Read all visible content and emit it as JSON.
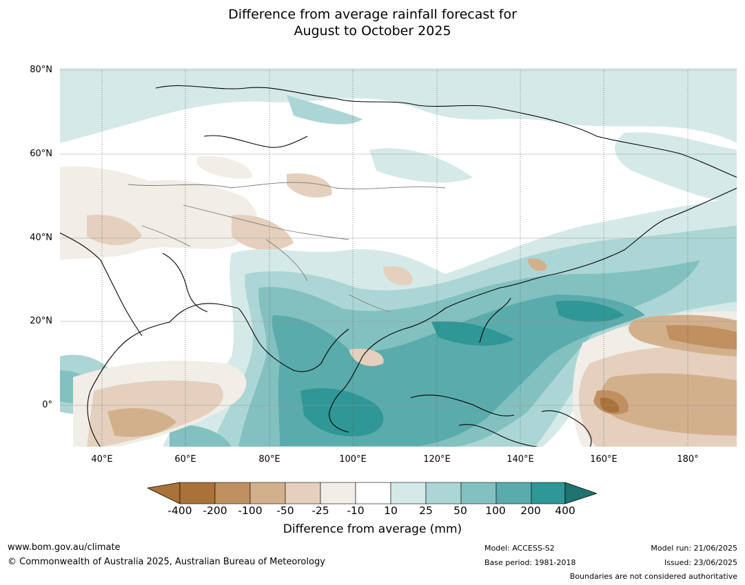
{
  "title": {
    "line1": "Difference from average rainfall forecast for",
    "line2": "August to October 2025"
  },
  "axes": {
    "lat_labels": [
      "80°N",
      "60°N",
      "40°N",
      "20°N",
      "0°"
    ],
    "lon_labels": [
      "40°E",
      "60°E",
      "80°E",
      "100°E",
      "120°E",
      "140°E",
      "160°E",
      "180°"
    ]
  },
  "colorbar": {
    "ticks": [
      "-400",
      "-200",
      "-100",
      "-50",
      "-25",
      "-10",
      "10",
      "25",
      "50",
      "100",
      "200",
      "400"
    ],
    "colors": [
      "#a87239",
      "#c09060",
      "#d3b08c",
      "#e4d0bd",
      "#f1ede7",
      "#ffffff",
      "#d5eae8",
      "#acd6d5",
      "#82c1c0",
      "#5aabab",
      "#2f9795",
      "#1e7470"
    ],
    "label": "Difference from average (mm)"
  },
  "footer": {
    "website": "www.bom.gov.au/climate",
    "copyright": "© Commonwealth of Australia 2025, Australian Bureau of Meteorology",
    "model": "Model: ACCESS-S2",
    "base_period": "Base period: 1981-2018",
    "model_run": "Model run: 21/06/2025",
    "issued": "Issued: 23/06/2025",
    "disclaimer": "Boundaries are not considered authoritative"
  }
}
